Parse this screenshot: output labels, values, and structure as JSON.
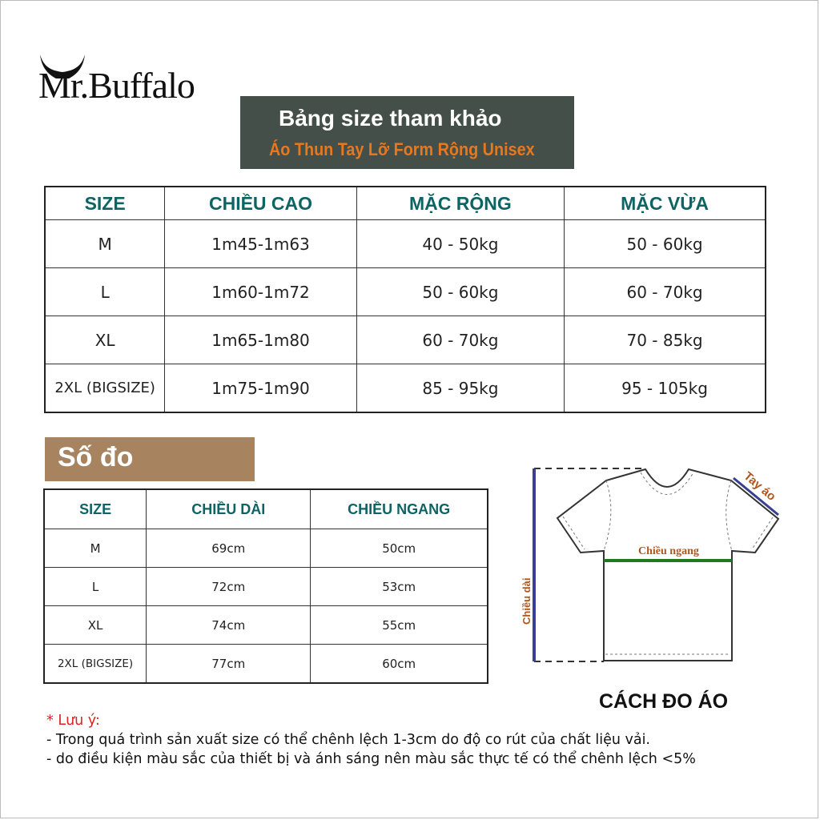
{
  "brand": {
    "logo_text": "Mr.Buffalo"
  },
  "title": {
    "main": "Bảng size tham khảo",
    "sub": "Áo Thun Tay Lỡ Form Rộng Unisex"
  },
  "size_table": {
    "headers": [
      "SIZE",
      "CHIỀU CAO",
      "MẶC RỘNG",
      "MẶC VỪA"
    ],
    "rows": [
      [
        "M",
        "1m45-1m63",
        "40 - 50kg",
        "50 - 60kg"
      ],
      [
        "L",
        "1m60-1m72",
        "50 - 60kg",
        "60 - 70kg"
      ],
      [
        "XL",
        "1m65-1m80",
        "60 - 70kg",
        "70 - 85kg"
      ],
      [
        "2XL (BIGSIZE)",
        "1m75-1m90",
        "85 - 95kg",
        "95 - 105kg"
      ]
    ]
  },
  "measure_section": {
    "title": "Số đo"
  },
  "measure_table": {
    "headers": [
      "SIZE",
      "CHIỀU DÀI",
      "CHIỀU NGANG"
    ],
    "rows": [
      [
        "M",
        "69cm",
        "50cm"
      ],
      [
        "L",
        "72cm",
        "53cm"
      ],
      [
        "XL",
        "74cm",
        "55cm"
      ],
      [
        "2XL (BIGSIZE)",
        "77cm",
        "60cm"
      ]
    ]
  },
  "diagram": {
    "length_label": "Chiều dài",
    "width_label": "Chiều ngang",
    "sleeve_label": "Tay áo",
    "caption": "CÁCH ĐO ÁO"
  },
  "notes": {
    "title": "* Lưu ý:",
    "lines": [
      "- Trong quá trình sản xuất size có thể chênh lệch 1-3cm do độ co rút của chất liệu vải.",
      "- do điều kiện màu sắc của thiết bị và ánh sáng nên màu sắc thực tế có thể chênh lệch <5%"
    ]
  },
  "colors": {
    "header_text": "#0e6364",
    "title_bg": "#434f48",
    "subtitle": "#e8781e",
    "sodo_bg": "#a8835f",
    "note_title": "#dd2222",
    "measure_line_blue": "#3a3f8f",
    "measure_line_green": "#1f7a1f",
    "label_brown": "#b0561c"
  }
}
